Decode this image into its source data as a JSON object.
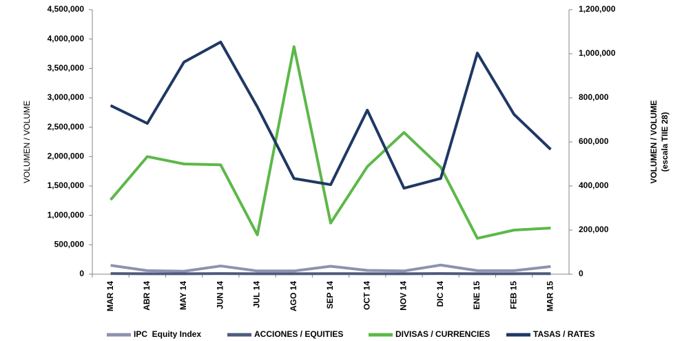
{
  "chart_data": {
    "type": "line",
    "ylabel": "VOLUMEN / VOLUME",
    "y2label": [
      "VOLUMEN / VOLUME",
      "(escala TIIE 28)"
    ],
    "categories": [
      "MAR 14",
      "ABR 14",
      "MAY 14",
      "JUN 14",
      "JUL 14",
      "AGO 14",
      "SEP 14",
      "OCT 14",
      "NOV 14",
      "DIC 14",
      "ENE 15",
      "FEB 15",
      "MAR 15"
    ],
    "ylim": [
      0,
      4500000
    ],
    "yticks": [
      0,
      {
        "value": 500000,
        "label": "500,000"
      },
      {
        "value": 1000000,
        "label": "1,000,000"
      },
      {
        "value": 1500000,
        "label": "1,500,000"
      },
      {
        "value": 2000000,
        "label": "2,000,000"
      },
      {
        "value": 2500000,
        "label": "2,500,000"
      },
      {
        "value": 3000000,
        "label": "3,000,000"
      },
      {
        "value": 3500000,
        "label": "3,500,000"
      },
      {
        "value": 4000000,
        "label": "4,000,000"
      },
      {
        "value": 4500000,
        "label": "4,500,000"
      }
    ],
    "y2lim": [
      0,
      1200000
    ],
    "y2ticks": [
      0,
      {
        "value": 200000,
        "label": "200,000"
      },
      {
        "value": 400000,
        "label": "400,000"
      },
      {
        "value": 600000,
        "label": "600,000"
      },
      {
        "value": 800000,
        "label": "800,000"
      },
      {
        "value": 1000000,
        "label": "1,000,000"
      },
      {
        "value": 1200000,
        "label": "1,200,000"
      }
    ],
    "grid": false,
    "legend": "bottom",
    "series": [
      {
        "name": "IPC  Equity Index",
        "color": "#8c93b0",
        "values": [
          150000,
          60000,
          50000,
          140000,
          55000,
          55000,
          135000,
          65000,
          55000,
          155000,
          60000,
          60000,
          130000
        ]
      },
      {
        "name": "ACCIONES / EQUITIES",
        "color": "#4d5b7c",
        "values": [
          10000,
          8000,
          8000,
          10000,
          8000,
          8000,
          9000,
          8000,
          8000,
          10000,
          8000,
          8000,
          9000
        ]
      },
      {
        "name": "DIVISAS / CURRENCIES",
        "color": "#5db848",
        "values": [
          1265000,
          2000000,
          1875000,
          1860000,
          670000,
          3870000,
          870000,
          1830000,
          2410000,
          1820000,
          610000,
          750000,
          785000
        ]
      },
      {
        "name": "TASAS / RATES",
        "color": "#1f3864",
        "axis": "y2",
        "values": [
          765000,
          684000,
          962000,
          1053000,
          759000,
          434000,
          406000,
          744000,
          390000,
          434000,
          1003000,
          725000,
          566000
        ]
      }
    ]
  }
}
